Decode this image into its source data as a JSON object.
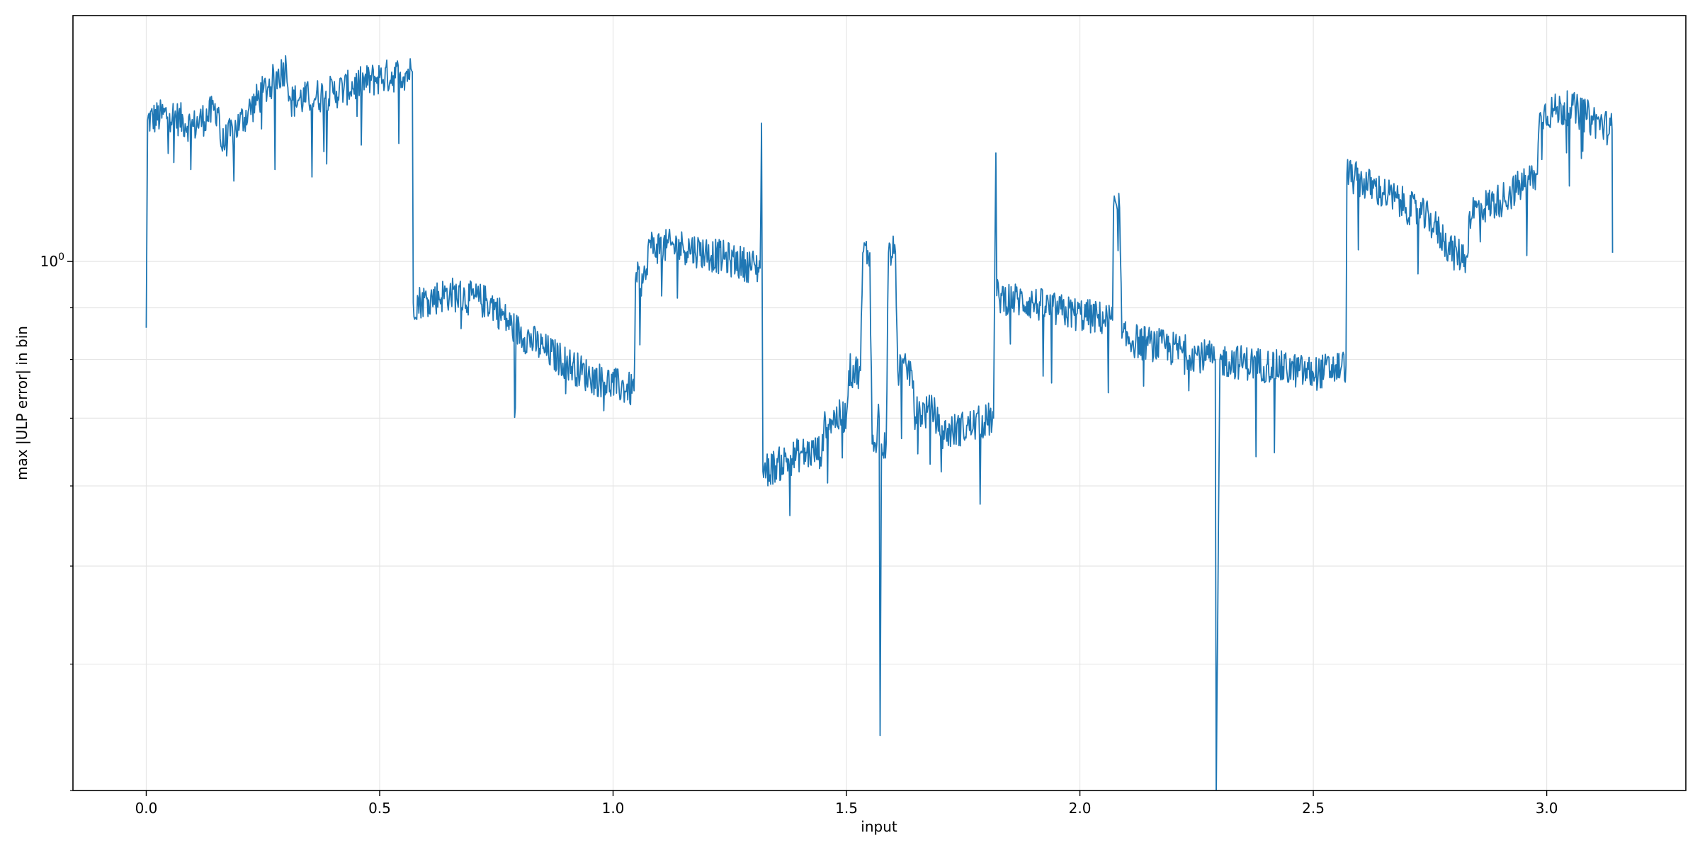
{
  "chart_data": {
    "type": "line",
    "title": "",
    "xlabel": "input",
    "ylabel": "max |ULP error| in bin",
    "xlim": [
      -0.157,
      3.298
    ],
    "ylim": [
      0.3,
      1.75
    ],
    "yscale": "log",
    "grid": true,
    "colors": {
      "series": "#1f77b4",
      "grid": "#e6e6e6",
      "axis": "#000000"
    },
    "x_ticks": [
      {
        "value": 0.0,
        "label": "0.0"
      },
      {
        "value": 0.5,
        "label": "0.5"
      },
      {
        "value": 1.0,
        "label": "1.0"
      },
      {
        "value": 1.5,
        "label": "1.5"
      },
      {
        "value": 2.0,
        "label": "2.0"
      },
      {
        "value": 2.5,
        "label": "2.5"
      },
      {
        "value": 3.0,
        "label": "3.0"
      }
    ],
    "y_major_ticks": [
      {
        "value": 1.0,
        "base": "10",
        "exp": "0"
      }
    ],
    "y_minor_ticks": [
      0.3,
      0.4,
      0.5,
      0.6,
      0.7,
      0.8,
      0.9
    ],
    "series": [
      {
        "noise_level": 0.04,
        "values": [
          [
            0.0,
            0.86
          ],
          [
            0.003,
            1.38
          ],
          [
            0.05,
            1.4
          ],
          [
            0.1,
            1.36
          ],
          [
            0.155,
            1.42
          ],
          [
            0.16,
            1.3
          ],
          [
            0.2,
            1.37
          ],
          [
            0.25,
            1.47
          ],
          [
            0.3,
            1.56
          ],
          [
            0.31,
            1.44
          ],
          [
            0.4,
            1.47
          ],
          [
            0.5,
            1.52
          ],
          [
            0.57,
            1.54
          ],
          [
            0.572,
            0.91
          ],
          [
            0.65,
            0.93
          ],
          [
            0.74,
            0.91
          ],
          [
            0.78,
            0.865
          ],
          [
            0.85,
            0.82
          ],
          [
            0.95,
            0.77
          ],
          [
            1.045,
            0.745
          ],
          [
            1.048,
            0.96
          ],
          [
            1.07,
            0.96
          ],
          [
            1.075,
            1.035
          ],
          [
            1.15,
            1.035
          ],
          [
            1.25,
            1.005
          ],
          [
            1.315,
            0.985
          ],
          [
            1.318,
            1.37
          ],
          [
            1.321,
            0.62
          ],
          [
            1.4,
            0.645
          ],
          [
            1.45,
            0.65
          ],
          [
            1.452,
            0.695
          ],
          [
            1.5,
            0.705
          ],
          [
            1.505,
            0.78
          ],
          [
            1.53,
            0.78
          ],
          [
            1.535,
            1.02
          ],
          [
            1.55,
            1.02
          ],
          [
            1.555,
            0.66
          ],
          [
            1.565,
            0.66
          ],
          [
            1.567,
            0.7
          ],
          [
            1.57,
            0.7
          ],
          [
            1.572,
            0.34
          ],
          [
            1.575,
            0.66
          ],
          [
            1.585,
            0.66
          ],
          [
            1.59,
            1.02
          ],
          [
            1.605,
            1.02
          ],
          [
            1.61,
            0.78
          ],
          [
            1.64,
            0.78
          ],
          [
            1.645,
            0.71
          ],
          [
            1.69,
            0.71
          ],
          [
            1.7,
            0.675
          ],
          [
            1.75,
            0.685
          ],
          [
            1.815,
            0.7
          ],
          [
            1.82,
            1.28
          ],
          [
            1.822,
            0.925
          ],
          [
            1.9,
            0.91
          ],
          [
            1.95,
            0.895
          ],
          [
            2.07,
            0.875
          ],
          [
            2.072,
            1.13
          ],
          [
            2.085,
            1.13
          ],
          [
            2.09,
            0.84
          ],
          [
            2.15,
            0.83
          ],
          [
            2.25,
            0.81
          ],
          [
            2.29,
            0.8
          ],
          [
            2.292,
            0.29
          ],
          [
            2.3,
            0.8
          ],
          [
            2.4,
            0.79
          ],
          [
            2.5,
            0.775
          ],
          [
            2.57,
            0.79
          ],
          [
            2.572,
            1.22
          ],
          [
            2.65,
            1.17
          ],
          [
            2.75,
            1.1
          ],
          [
            2.8,
            1.02
          ],
          [
            2.83,
            1.01
          ],
          [
            2.835,
            1.12
          ],
          [
            2.9,
            1.15
          ],
          [
            2.98,
            1.22
          ],
          [
            2.985,
            1.4
          ],
          [
            3.05,
            1.42
          ],
          [
            3.1,
            1.38
          ],
          [
            3.14,
            1.35
          ],
          [
            3.141,
            1.02
          ]
        ]
      }
    ]
  }
}
